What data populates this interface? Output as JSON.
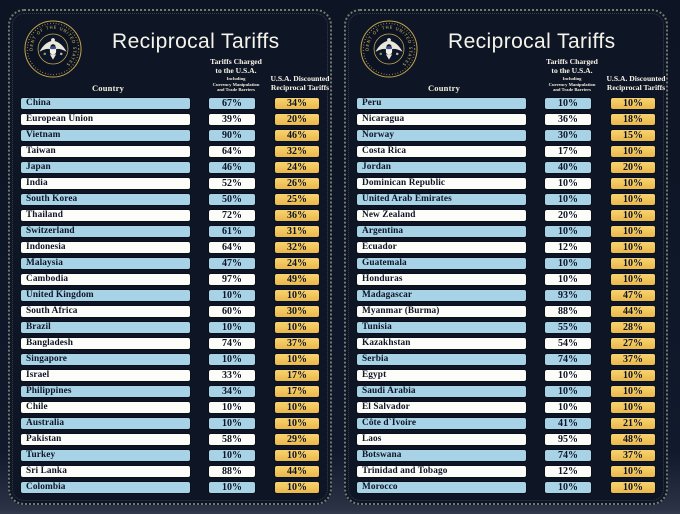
{
  "panels": [
    {
      "title": "Reciprocal Tariffs",
      "seal_text": "PRESIDENT OF THE UNITED STATES",
      "country_header": "Country",
      "charged_header": [
        "Tariffs Charged",
        "to the U.S.A."
      ],
      "charged_subheader": [
        "Including",
        "Currency Manipulation",
        "and Trade Barriers"
      ],
      "discounted_header": [
        "U.S.A. Discounted",
        "Reciprocal Tariffs"
      ]
    },
    {
      "title": "Reciprocal Tariffs",
      "seal_text": "PRESIDENT OF THE UNITED STATES",
      "country_header": "Country",
      "charged_header": [
        "Tariffs Charged",
        "to the U.S.A."
      ],
      "charged_subheader": [
        "Including",
        "Currency Manipulation",
        "and Trade Barriers"
      ],
      "discounted_header": [
        "U.S.A. Discounted",
        "Reciprocal Tariffs"
      ]
    }
  ],
  "colors": {
    "background": "#101a2c",
    "panel_background": "#0e1626",
    "row_blue": "#a8d3e7",
    "row_white": "#fcfcf9",
    "accent_gold": "#f2c55c",
    "text_dark": "#0d1424",
    "header_text": "#f6f3ea",
    "seal_gold": "#d5b05c",
    "dotted_border": "#cdc8ac"
  },
  "chart_data": [
    {
      "type": "table",
      "title": "Reciprocal Tariffs",
      "columns": [
        "Country",
        "Tariffs Charged to the U.S.A. Including Currency Manipulation and Trade Barriers",
        "U.S.A. Discounted Reciprocal Tariffs"
      ],
      "rows": [
        [
          "China",
          "67%",
          "34%"
        ],
        [
          "European Union",
          "39%",
          "20%"
        ],
        [
          "Vietnam",
          "90%",
          "46%"
        ],
        [
          "Taiwan",
          "64%",
          "32%"
        ],
        [
          "Japan",
          "46%",
          "24%"
        ],
        [
          "India",
          "52%",
          "26%"
        ],
        [
          "South Korea",
          "50%",
          "25%"
        ],
        [
          "Thailand",
          "72%",
          "36%"
        ],
        [
          "Switzerland",
          "61%",
          "31%"
        ],
        [
          "Indonesia",
          "64%",
          "32%"
        ],
        [
          "Malaysia",
          "47%",
          "24%"
        ],
        [
          "Cambodia",
          "97%",
          "49%"
        ],
        [
          "United Kingdom",
          "10%",
          "10%"
        ],
        [
          "South Africa",
          "60%",
          "30%"
        ],
        [
          "Brazil",
          "10%",
          "10%"
        ],
        [
          "Bangladesh",
          "74%",
          "37%"
        ],
        [
          "Singapore",
          "10%",
          "10%"
        ],
        [
          "Israel",
          "33%",
          "17%"
        ],
        [
          "Philippines",
          "34%",
          "17%"
        ],
        [
          "Chile",
          "10%",
          "10%"
        ],
        [
          "Australia",
          "10%",
          "10%"
        ],
        [
          "Pakistan",
          "58%",
          "29%"
        ],
        [
          "Turkey",
          "10%",
          "10%"
        ],
        [
          "Sri Lanka",
          "88%",
          "44%"
        ],
        [
          "Colombia",
          "10%",
          "10%"
        ]
      ]
    },
    {
      "type": "table",
      "title": "Reciprocal Tariffs",
      "columns": [
        "Country",
        "Tariffs Charged to the U.S.A. Including Currency Manipulation and Trade Barriers",
        "U.S.A. Discounted Reciprocal Tariffs"
      ],
      "rows": [
        [
          "Peru",
          "10%",
          "10%"
        ],
        [
          "Nicaragua",
          "36%",
          "18%"
        ],
        [
          "Norway",
          "30%",
          "15%"
        ],
        [
          "Costa Rica",
          "17%",
          "10%"
        ],
        [
          "Jordan",
          "40%",
          "20%"
        ],
        [
          "Dominican Republic",
          "10%",
          "10%"
        ],
        [
          "United Arab Emirates",
          "10%",
          "10%"
        ],
        [
          "New Zealand",
          "20%",
          "10%"
        ],
        [
          "Argentina",
          "10%",
          "10%"
        ],
        [
          "Ecuador",
          "12%",
          "10%"
        ],
        [
          "Guatemala",
          "10%",
          "10%"
        ],
        [
          "Honduras",
          "10%",
          "10%"
        ],
        [
          "Madagascar",
          "93%",
          "47%"
        ],
        [
          "Myanmar (Burma)",
          "88%",
          "44%"
        ],
        [
          "Tunisia",
          "55%",
          "28%"
        ],
        [
          "Kazakhstan",
          "54%",
          "27%"
        ],
        [
          "Serbia",
          "74%",
          "37%"
        ],
        [
          "Egypt",
          "10%",
          "10%"
        ],
        [
          "Saudi Arabia",
          "10%",
          "10%"
        ],
        [
          "El Salvador",
          "10%",
          "10%"
        ],
        [
          "Côte d`Ivoire",
          "41%",
          "21%"
        ],
        [
          "Laos",
          "95%",
          "48%"
        ],
        [
          "Botswana",
          "74%",
          "37%"
        ],
        [
          "Trinidad and Tobago",
          "12%",
          "10%"
        ],
        [
          "Morocco",
          "10%",
          "10%"
        ]
      ]
    }
  ]
}
